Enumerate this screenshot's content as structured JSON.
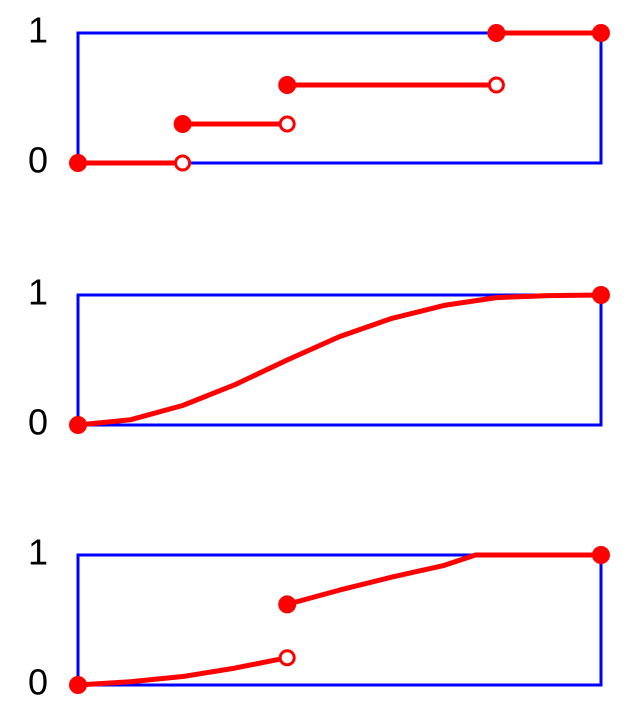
{
  "chart_data": [
    {
      "type": "line",
      "color": "#ff0000",
      "frame_color": "#0000ff",
      "xlim": [
        0,
        1
      ],
      "ylim": [
        0,
        1
      ],
      "yticks": [
        0,
        1
      ],
      "series": [
        {
          "x": [
            0,
            0.2
          ],
          "values": [
            0,
            0
          ],
          "start_marker": "filled",
          "end_marker": "open"
        },
        {
          "x": [
            0.2,
            0.4
          ],
          "values": [
            0.3,
            0.3
          ],
          "start_marker": "filled",
          "end_marker": "open"
        },
        {
          "x": [
            0.4,
            0.8
          ],
          "values": [
            0.6,
            0.6
          ],
          "start_marker": "filled",
          "end_marker": "open"
        },
        {
          "x": [
            0.8,
            1
          ],
          "values": [
            1,
            1
          ],
          "start_marker": "filled",
          "end_marker": "filled"
        }
      ]
    },
    {
      "type": "line",
      "color": "#ff0000",
      "frame_color": "#0000ff",
      "xlim": [
        0,
        1
      ],
      "ylim": [
        0,
        1
      ],
      "yticks": [
        0,
        1
      ],
      "series": [
        {
          "x": [
            0,
            0.1,
            0.2,
            0.3,
            0.4,
            0.5,
            0.6,
            0.7,
            0.8,
            0.9,
            1
          ],
          "values": [
            0,
            0.04,
            0.15,
            0.31,
            0.5,
            0.68,
            0.82,
            0.92,
            0.98,
            0.995,
            1
          ],
          "start_marker": "filled",
          "end_marker": "filled"
        }
      ]
    },
    {
      "type": "line",
      "color": "#ff0000",
      "frame_color": "#0000ff",
      "xlim": [
        0,
        1
      ],
      "ylim": [
        0,
        1
      ],
      "yticks": [
        0,
        1
      ],
      "series": [
        {
          "x": [
            0,
            0.1,
            0.2,
            0.3,
            0.4
          ],
          "values": [
            0,
            0.025,
            0.065,
            0.13,
            0.21
          ],
          "start_marker": "filled",
          "end_marker": "open"
        },
        {
          "x": [
            0.4,
            0.5,
            0.6,
            0.7,
            0.76,
            1
          ],
          "values": [
            0.62,
            0.73,
            0.83,
            0.92,
            1,
            1
          ],
          "start_marker": "filled",
          "end_marker": "filled"
        }
      ]
    }
  ]
}
